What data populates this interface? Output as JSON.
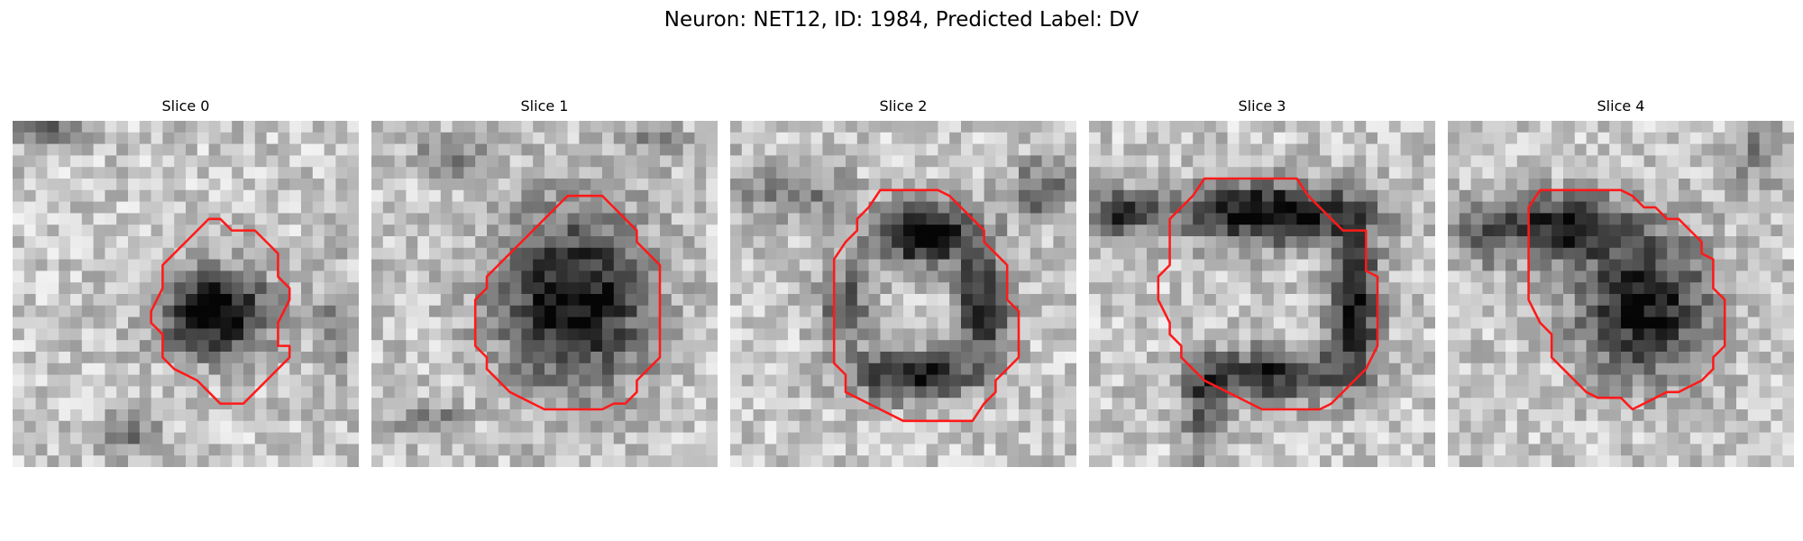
{
  "figure": {
    "title": "Neuron: NET12, ID: 1984, Predicted Label: DV"
  },
  "outline_color": "#ff1a1a",
  "panels": [
    {
      "title": "Slice 0"
    },
    {
      "title": "Slice 1"
    },
    {
      "title": "Slice 2"
    },
    {
      "title": "Slice 3"
    },
    {
      "title": "Slice 4"
    }
  ]
}
